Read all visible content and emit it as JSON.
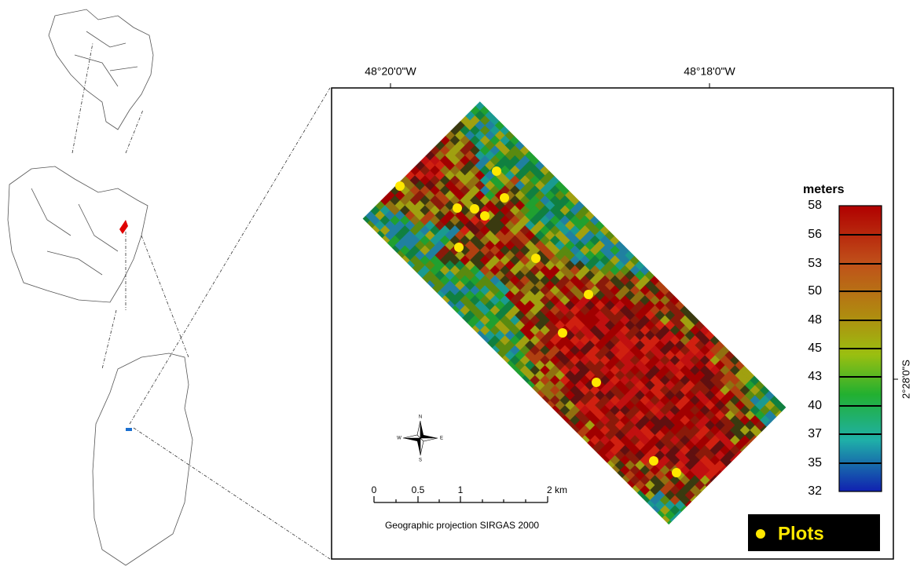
{
  "coordinates": {
    "top": [
      "48°20'0\"W",
      "48°18'0\"W"
    ],
    "right": "2°28'0\"S"
  },
  "legend": {
    "title": "meters",
    "labels": [
      "58",
      "56",
      "53",
      "50",
      "48",
      "45",
      "43",
      "40",
      "37",
      "35",
      "32"
    ]
  },
  "scale_bar": {
    "labels": [
      "0",
      "0.5",
      "1",
      "2 km"
    ],
    "projection": "Geographic projection SIRGAS 2000"
  },
  "compass": {
    "n": "N",
    "e": "E",
    "s": "S",
    "w": "W"
  },
  "plots_legend": "Plots"
}
